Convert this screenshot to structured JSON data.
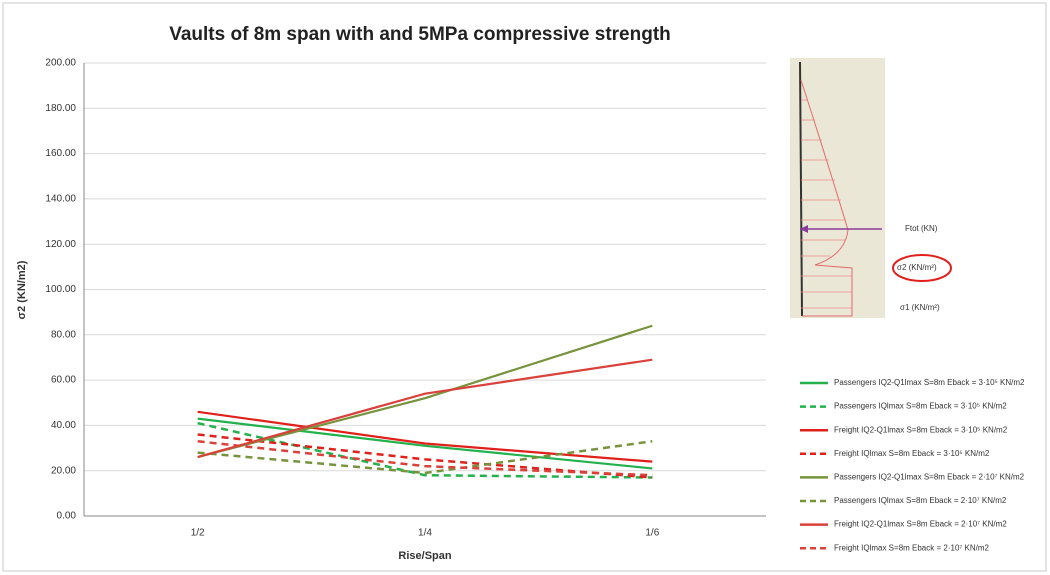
{
  "chart_data": {
    "type": "line",
    "title": "Vaults of 8m span with and 5MPa compressive strength",
    "x_label": "Rise/Span",
    "y_label": "σ2 (KN/m2)",
    "categories": [
      "1/2",
      "1/4",
      "1/6"
    ],
    "ylim": [
      0,
      200
    ],
    "yticks": [
      {
        "value": 0,
        "label": "0.00"
      },
      {
        "value": 20,
        "label": "20.00"
      },
      {
        "value": 40,
        "label": "40.00"
      },
      {
        "value": 60,
        "label": "60.00"
      },
      {
        "value": 80,
        "label": "80.00"
      },
      {
        "value": 100,
        "label": "100.00"
      },
      {
        "value": 120,
        "label": "120.00"
      },
      {
        "value": 140,
        "label": "140.00"
      },
      {
        "value": 160,
        "label": "160.00"
      },
      {
        "value": 180,
        "label": "180.00"
      },
      {
        "value": 200,
        "label": "200.00"
      }
    ],
    "grid": true,
    "legend": "right",
    "series": [
      {
        "name": "Passengers IQ2-Q1lmax S=8m Eback = 3·10⁵ KN/m2",
        "color": "#22b14c",
        "dash": false,
        "values": [
          43,
          31,
          21
        ]
      },
      {
        "name": "Passengers IQlmax S=8m Eback = 3·10⁵ KN/m2",
        "color": "#22b14c",
        "dash": true,
        "values": [
          41,
          18,
          17
        ]
      },
      {
        "name": "Freight IQ2-Q1lmax S=8m Eback = 3·10⁵ KN/m2",
        "color": "#e0201b",
        "dash": false,
        "values": [
          46,
          32,
          24
        ]
      },
      {
        "name": "Freight IQlmax S=8m Eback = 3·10⁵ KN/m2",
        "color": "#e0201b",
        "dash": true,
        "values": [
          36,
          25,
          17
        ]
      },
      {
        "name": "Passengers IQ2-Q1lmax S=8m Eback = 2·10⁷ KN/m2",
        "color": "#77933c",
        "dash": false,
        "values": [
          26,
          52,
          84
        ]
      },
      {
        "name": "Passengers IQlmax S=8m Eback = 2·10⁷ KN/m2",
        "color": "#77933c",
        "dash": true,
        "values": [
          28,
          19,
          33
        ]
      },
      {
        "name": "Freight IQ2-Q1lmax S=8m Eback = 2·10⁷ KN/m2",
        "color": "#d9413a",
        "dash": false,
        "values": [
          26,
          54,
          69
        ]
      },
      {
        "name": "Freight IQlmax S=8m Eback = 2·10⁷ KN/m2",
        "color": "#d9413a",
        "dash": true,
        "values": [
          33,
          22,
          18
        ]
      }
    ],
    "inset_labels": [
      "Ftot (KN)",
      "σ2 (KN/m²)",
      "σ1 (KN/m²)"
    ]
  }
}
